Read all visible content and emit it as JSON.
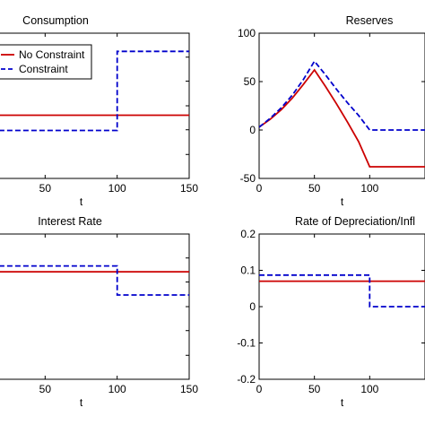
{
  "chart_data": [
    {
      "type": "line",
      "title": "Consumption",
      "xlabel": "t",
      "ylabel": "",
      "xlim": [
        0,
        150
      ],
      "xticks": [
        50,
        100,
        150
      ],
      "ylim": [
        0,
        1
      ],
      "yticks": [],
      "grid": false,
      "legend": {
        "placement": "top-left",
        "entries": [
          "No Constraint",
          "Constraint"
        ]
      },
      "series": [
        {
          "name": "No Constraint",
          "color": "#cc0000",
          "style": "solid",
          "x": [
            -10,
            150
          ],
          "y": [
            0.435,
            0.435
          ]
        },
        {
          "name": "Constraint",
          "color": "#0000cc",
          "style": "dashed",
          "x": [
            -10,
            100,
            100,
            150
          ],
          "y": [
            0.33,
            0.33,
            0.875,
            0.875
          ]
        }
      ]
    },
    {
      "type": "line",
      "title": "Reserves",
      "xlabel": "t",
      "ylabel": "",
      "xlim": [
        0,
        150
      ],
      "xticks": [
        0,
        50,
        100
      ],
      "ylim": [
        -50,
        100
      ],
      "yticks": [
        -50,
        0,
        50,
        100
      ],
      "grid": false,
      "series": [
        {
          "name": "No Constraint",
          "color": "#cc0000",
          "style": "solid",
          "x": [
            0,
            10,
            20,
            30,
            40,
            50,
            60,
            70,
            80,
            90,
            100,
            110,
            120,
            150
          ],
          "y": [
            3,
            11,
            21,
            33,
            47,
            62,
            45,
            27,
            8,
            -12,
            -38,
            -38,
            -38,
            -38
          ]
        },
        {
          "name": "Constraint",
          "color": "#0000cc",
          "style": "dashed",
          "x": [
            0,
            10,
            20,
            30,
            40,
            50,
            60,
            70,
            80,
            90,
            100,
            110,
            120,
            150
          ],
          "y": [
            3,
            12,
            23,
            36,
            52,
            71,
            57,
            42,
            28,
            15,
            0,
            0,
            0,
            0
          ]
        }
      ]
    },
    {
      "type": "line",
      "title": "Interest Rate",
      "xlabel": "t",
      "ylabel": "",
      "xlim": [
        0,
        150
      ],
      "xticks": [
        50,
        100,
        150
      ],
      "ylim": [
        0,
        1
      ],
      "yticks": [],
      "grid": false,
      "series": [
        {
          "name": "No Constraint",
          "color": "#cc0000",
          "style": "solid",
          "x": [
            -10,
            150
          ],
          "y": [
            0.74,
            0.74
          ]
        },
        {
          "name": "Constraint",
          "color": "#0000cc",
          "style": "dashed",
          "x": [
            -10,
            100,
            100,
            150
          ],
          "y": [
            0.78,
            0.78,
            0.58,
            0.58
          ]
        }
      ]
    },
    {
      "type": "line",
      "title": "Rate of Depreciation/Infl",
      "xlabel": "t",
      "ylabel": "",
      "xlim": [
        0,
        150
      ],
      "xticks": [
        0,
        50,
        100
      ],
      "ylim": [
        -0.2,
        0.2
      ],
      "yticks": [
        "-0.2",
        "-0.1",
        "0",
        "0.1",
        "0.2"
      ],
      "grid": false,
      "series": [
        {
          "name": "No Constraint",
          "color": "#cc0000",
          "style": "solid",
          "x": [
            0,
            150
          ],
          "y": [
            0.07,
            0.07
          ]
        },
        {
          "name": "Constraint",
          "color": "#0000cc",
          "style": "dashed",
          "x": [
            0,
            100,
            100,
            150
          ],
          "y": [
            0.087,
            0.087,
            0,
            0
          ]
        }
      ]
    }
  ]
}
